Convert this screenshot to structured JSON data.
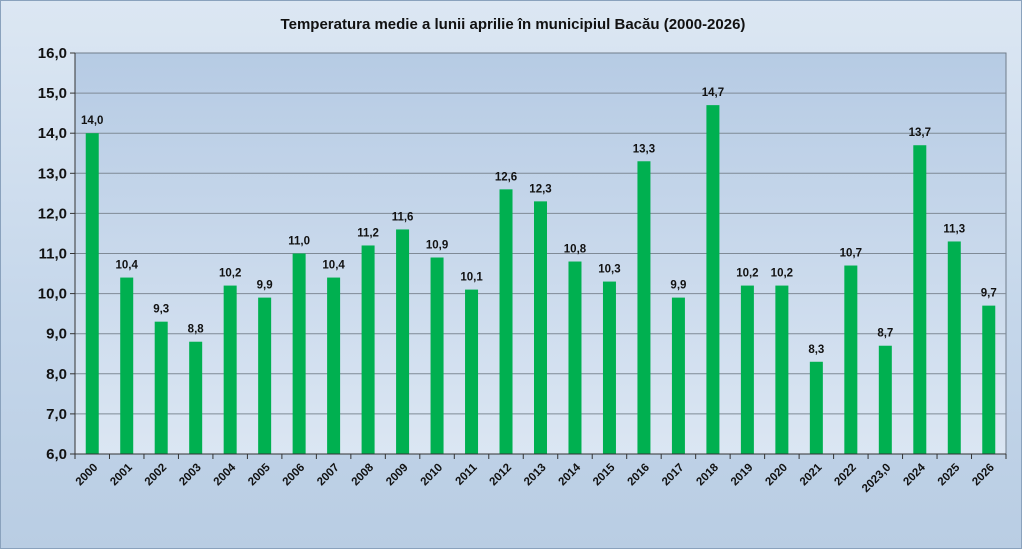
{
  "chart_data": {
    "type": "bar",
    "title": "Temperatura medie a lunii aprilie în municipiul Bacău (2000-2026)",
    "xlabel": "",
    "ylabel": "",
    "ylim": [
      6,
      16
    ],
    "yticks": [
      "6,0",
      "7,0",
      "8,0",
      "9,0",
      "10,0",
      "11,0",
      "12,0",
      "13,0",
      "14,0",
      "15,0",
      "16,0"
    ],
    "categories": [
      "2000",
      "2001",
      "2002",
      "2003",
      "2004",
      "2005",
      "2006",
      "2007",
      "2008",
      "2009",
      "2010",
      "2011",
      "2012",
      "2013",
      "2014",
      "2015",
      "2016",
      "2017",
      "2018",
      "2019",
      "2020",
      "2021",
      "2022",
      "2023,0",
      "2024",
      "2025",
      "2026"
    ],
    "values": [
      14.0,
      10.4,
      9.3,
      8.8,
      10.2,
      9.9,
      11.0,
      10.4,
      11.2,
      11.6,
      10.9,
      10.1,
      12.6,
      12.3,
      10.8,
      10.3,
      13.3,
      9.9,
      14.7,
      10.2,
      10.2,
      8.3,
      10.7,
      8.7,
      13.7,
      11.3,
      9.7
    ],
    "data_labels": [
      "14,0",
      "10,4",
      "9,3",
      "8,8",
      "10,2",
      "9,9",
      "11,0",
      "10,4",
      "11,2",
      "11,6",
      "10,9",
      "10,1",
      "12,6",
      "12,3",
      "10,8",
      "10,3",
      "13,3",
      "9,9",
      "14,7",
      "10,2",
      "10,2",
      "8,3",
      "10,7",
      "8,7",
      "13,7",
      "11,3",
      "9,7"
    ],
    "grid": true,
    "legend": "none",
    "colors": {
      "bar": "#00b050",
      "plot_bg_top": "#b6cbe4",
      "plot_bg_bottom": "#dbe6f3",
      "grid": "#7f8a96"
    }
  }
}
